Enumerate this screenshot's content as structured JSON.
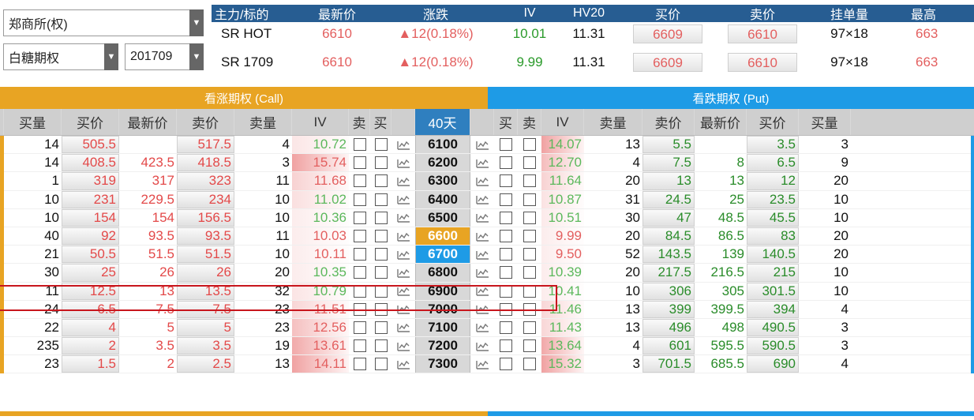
{
  "exchange": {
    "label": "郑商所(权)"
  },
  "product": {
    "label": "白糖期权"
  },
  "month": {
    "label": "201709"
  },
  "futures": {
    "headers": [
      "主力/标的",
      "最新价",
      "涨跌",
      "IV",
      "HV20",
      "买价",
      "卖价",
      "挂单量",
      "最高"
    ],
    "rows": [
      {
        "name": "SR HOT",
        "last": "6610",
        "change": "▲12(0.18%)",
        "iv": "10.01",
        "hv20": "11.31",
        "bid": "6609",
        "ask": "6610",
        "vol": "97×18",
        "high": "663"
      },
      {
        "name": "SR 1709",
        "last": "6610",
        "change": "▲12(0.18%)",
        "iv": "9.99",
        "hv20": "11.31",
        "bid": "6609",
        "ask": "6610",
        "vol": "97×18",
        "high": "663"
      }
    ]
  },
  "call_header": "看涨期权 (Call)",
  "put_header": "看跌期权 (Put)",
  "columns": {
    "call": [
      "买量",
      "买价",
      "最新价",
      "卖价",
      "卖量",
      "IV",
      "卖",
      "买"
    ],
    "days": "40天",
    "put": [
      "买",
      "卖",
      "IV",
      "卖量",
      "卖价",
      "最新价",
      "买价",
      "买量"
    ]
  },
  "colors": {
    "call_accent": "#e8a423",
    "put_accent": "#1e9be6",
    "up": "#e34949",
    "down": "#2a8c2a",
    "highlight_box": "#c8161d"
  },
  "options": [
    {
      "strike": "6100",
      "c_bidv": "14",
      "c_bid": "505.5",
      "c_last": "",
      "c_ask": "517.5",
      "c_askv": "4",
      "c_iv": "10.72",
      "p_iv": "14.07",
      "p_askv": "13",
      "p_ask": "5.5",
      "p_last": "",
      "p_bid": "3.5",
      "p_bidv": "3"
    },
    {
      "strike": "6200",
      "c_bidv": "14",
      "c_bid": "408.5",
      "c_last": "423.5",
      "c_ask": "418.5",
      "c_askv": "3",
      "c_iv": "15.74",
      "p_iv": "12.70",
      "p_askv": "4",
      "p_ask": "7.5",
      "p_last": "8",
      "p_bid": "6.5",
      "p_bidv": "9"
    },
    {
      "strike": "6300",
      "c_bidv": "1",
      "c_bid": "319",
      "c_last": "317",
      "c_ask": "323",
      "c_askv": "11",
      "c_iv": "11.68",
      "p_iv": "11.64",
      "p_askv": "20",
      "p_ask": "13",
      "p_last": "13",
      "p_bid": "12",
      "p_bidv": "20"
    },
    {
      "strike": "6400",
      "c_bidv": "10",
      "c_bid": "231",
      "c_last": "229.5",
      "c_ask": "234",
      "c_askv": "10",
      "c_iv": "11.02",
      "p_iv": "10.87",
      "p_askv": "31",
      "p_ask": "24.5",
      "p_last": "25",
      "p_bid": "23.5",
      "p_bidv": "10"
    },
    {
      "strike": "6500",
      "c_bidv": "10",
      "c_bid": "154",
      "c_last": "154",
      "c_ask": "156.5",
      "c_askv": "10",
      "c_iv": "10.36",
      "p_iv": "10.51",
      "p_askv": "30",
      "p_ask": "47",
      "p_last": "48.5",
      "p_bid": "45.5",
      "p_bidv": "10"
    },
    {
      "strike": "6600",
      "c_bidv": "40",
      "c_bid": "92",
      "c_last": "93.5",
      "c_ask": "93.5",
      "c_askv": "11",
      "c_iv": "10.03",
      "p_iv": "9.99",
      "p_askv": "20",
      "p_ask": "84.5",
      "p_last": "86.5",
      "p_bid": "83",
      "p_bidv": "20"
    },
    {
      "strike": "6700",
      "c_bidv": "21",
      "c_bid": "50.5",
      "c_last": "51.5",
      "c_ask": "51.5",
      "c_askv": "10",
      "c_iv": "10.11",
      "p_iv": "9.50",
      "p_askv": "52",
      "p_ask": "143.5",
      "p_last": "139",
      "p_bid": "140.5",
      "p_bidv": "20"
    },
    {
      "strike": "6800",
      "c_bidv": "30",
      "c_bid": "25",
      "c_last": "26",
      "c_ask": "26",
      "c_askv": "20",
      "c_iv": "10.35",
      "p_iv": "10.39",
      "p_askv": "20",
      "p_ask": "217.5",
      "p_last": "216.5",
      "p_bid": "215",
      "p_bidv": "10"
    },
    {
      "strike": "6900",
      "c_bidv": "11",
      "c_bid": "12.5",
      "c_last": "13",
      "c_ask": "13.5",
      "c_askv": "32",
      "c_iv": "10.79",
      "p_iv": "10.41",
      "p_askv": "10",
      "p_ask": "306",
      "p_last": "305",
      "p_bid": "301.5",
      "p_bidv": "10"
    },
    {
      "strike": "7000",
      "c_bidv": "24",
      "c_bid": "6.5",
      "c_last": "7.5",
      "c_ask": "7.5",
      "c_askv": "23",
      "c_iv": "11.51",
      "p_iv": "11.46",
      "p_askv": "13",
      "p_ask": "399",
      "p_last": "399.5",
      "p_bid": "394",
      "p_bidv": "4"
    },
    {
      "strike": "7100",
      "c_bidv": "22",
      "c_bid": "4",
      "c_last": "5",
      "c_ask": "5",
      "c_askv": "23",
      "c_iv": "12.56",
      "p_iv": "11.43",
      "p_askv": "13",
      "p_ask": "496",
      "p_last": "498",
      "p_bid": "490.5",
      "p_bidv": "3"
    },
    {
      "strike": "7200",
      "c_bidv": "235",
      "c_bid": "2",
      "c_last": "3.5",
      "c_ask": "3.5",
      "c_askv": "19",
      "c_iv": "13.61",
      "p_iv": "13.64",
      "p_askv": "4",
      "p_ask": "601",
      "p_last": "595.5",
      "p_bid": "590.5",
      "p_bidv": "3"
    },
    {
      "strike": "7300",
      "c_bidv": "23",
      "c_bid": "1.5",
      "c_last": "2",
      "c_ask": "2.5",
      "c_askv": "13",
      "c_iv": "14.11",
      "p_iv": "15.32",
      "p_askv": "3",
      "p_ask": "701.5",
      "p_last": "685.5",
      "p_bid": "690",
      "p_bidv": "4"
    }
  ]
}
